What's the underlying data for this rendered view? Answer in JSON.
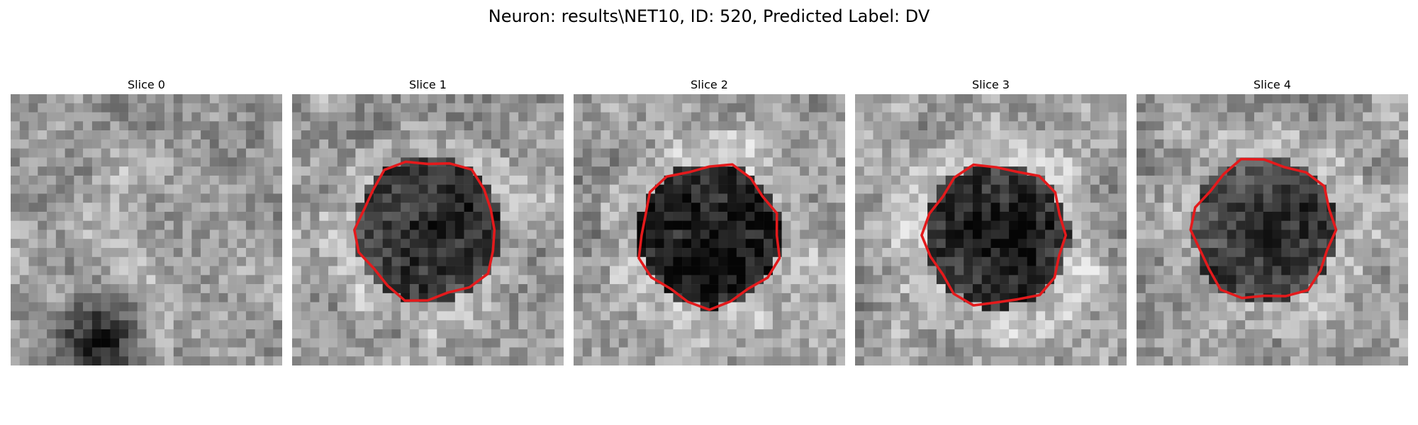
{
  "title": "Neuron: results\\NET10, ID: 520, Predicted Label: DV",
  "outline_color": "#e41a1c",
  "panels": [
    {
      "title": "Slice 0",
      "seed": 11,
      "blob": 0,
      "outlined": false,
      "center": [
        0.33,
        0.9
      ],
      "dark_corner": true
    },
    {
      "title": "Slice 1",
      "seed": 23,
      "blob": 0.55,
      "outlined": true,
      "center": [
        0.5,
        0.5
      ]
    },
    {
      "title": "Slice 2",
      "seed": 37,
      "blob": 0.65,
      "outlined": true,
      "center": [
        0.5,
        0.52
      ]
    },
    {
      "title": "Slice 3",
      "seed": 41,
      "blob": 0.6,
      "outlined": true,
      "center": [
        0.52,
        0.52
      ]
    },
    {
      "title": "Slice 4",
      "seed": 53,
      "blob": 0.45,
      "outlined": true,
      "center": [
        0.47,
        0.5
      ]
    }
  ]
}
